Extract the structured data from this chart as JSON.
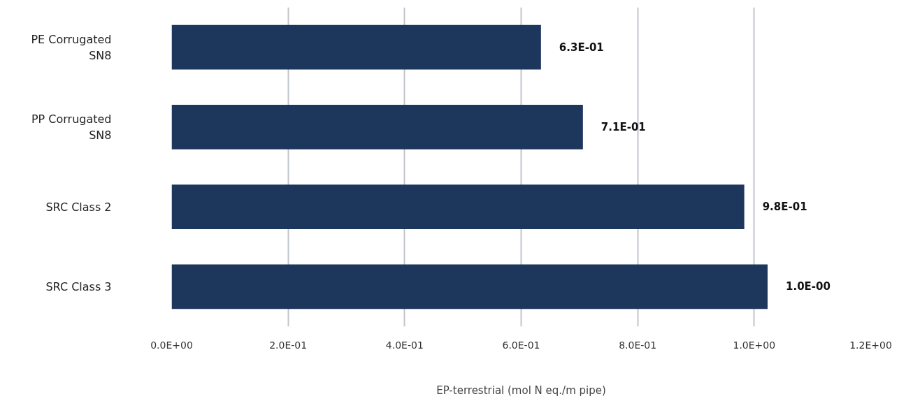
{
  "chart_data": {
    "type": "bar",
    "orientation": "horizontal",
    "xlabel": "EP-terrestrial (mol N eq./m pipe)",
    "categories": [
      "PE Corrugated SN8",
      "PP Corrugated SN8",
      "SRC Class 2",
      "SRC Class 3"
    ],
    "values": [
      0.634,
      0.706,
      0.983,
      1.023
    ],
    "value_labels": [
      "6.3E-01",
      "7.1E-01",
      "9.8E-01",
      "1.0E-00"
    ],
    "color": "#1d365c",
    "xlim": [
      0,
      1.2
    ],
    "xticks": [
      {
        "value": 0,
        "label": "0.0E+00"
      },
      {
        "value": 0.2,
        "label": "2.0E-01"
      },
      {
        "value": 0.4,
        "label": "4.0E-01"
      },
      {
        "value": 0.6,
        "label": "6.0E-01"
      },
      {
        "value": 0.8,
        "label": "8.0E-01"
      },
      {
        "value": 1.0,
        "label": "1.0E+00"
      },
      {
        "value": 1.2,
        "label": "1.2E+00"
      }
    ],
    "grid": "x"
  }
}
